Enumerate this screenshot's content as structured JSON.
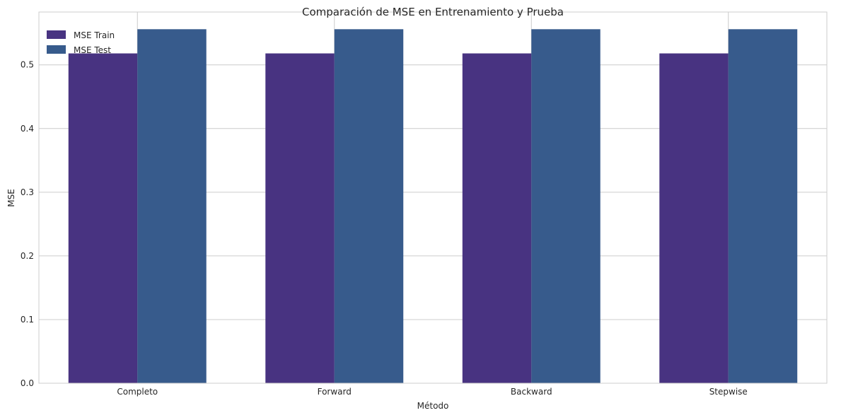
{
  "chart_data": {
    "type": "bar",
    "title": "Comparación de MSE en Entrenamiento y Prueba",
    "xlabel": "Método",
    "ylabel": "MSE",
    "categories": [
      "Completo",
      "Forward",
      "Backward",
      "Stepwise"
    ],
    "series": [
      {
        "name": "MSE Train",
        "color": "#483381",
        "values": [
          0.518,
          0.518,
          0.518,
          0.518
        ]
      },
      {
        "name": "MSE Test",
        "color": "#375b8c",
        "values": [
          0.556,
          0.556,
          0.556,
          0.556
        ]
      }
    ],
    "ylim": [
      0,
      0.583
    ],
    "yticks": [
      "0.0",
      "0.1",
      "0.2",
      "0.3",
      "0.4",
      "0.5"
    ],
    "grid": true,
    "legend_position": "top-left"
  }
}
